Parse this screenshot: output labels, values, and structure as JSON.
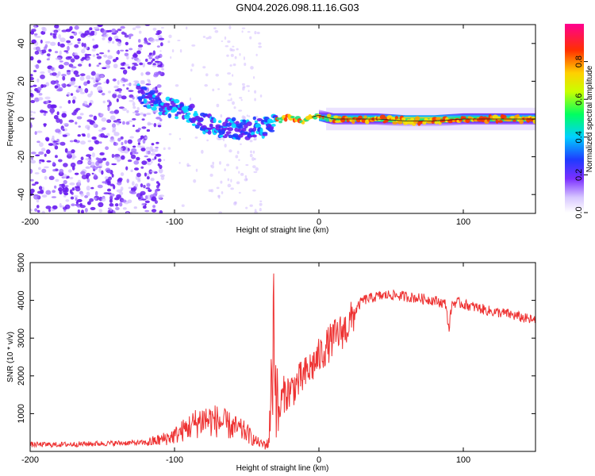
{
  "title": "GN04.2026.098.11.16.G03",
  "chart_data": [
    {
      "type": "heatmap",
      "xlabel": "Height of straight line (km)",
      "ylabel": "Frequency (Hz)",
      "xlim": [
        -200,
        150
      ],
      "ylim": [
        -50,
        50
      ],
      "xticks": [
        -200,
        -100,
        0,
        100
      ],
      "yticks": [
        -40,
        -20,
        0,
        20,
        40
      ],
      "colorbar": {
        "label": "Normalized spectral amplitude",
        "range": [
          0,
          1
        ],
        "ticks": [
          "0.0",
          "0.2",
          "0.4",
          "0.6",
          "0.8"
        ],
        "tick_values": [
          0,
          0.2,
          0.4,
          0.6,
          0.8
        ]
      },
      "ridge": {
        "x": [
          -125,
          -110,
          -100,
          -90,
          -80,
          -70,
          -60,
          -50,
          -45,
          -40,
          -35,
          -30,
          -25,
          -20,
          -15,
          -10,
          -5,
          0,
          5,
          10,
          20,
          40,
          60,
          80,
          100,
          120,
          150
        ],
        "freq": [
          13,
          8,
          5,
          3,
          -2,
          -4,
          -5,
          -6,
          -4,
          -5,
          -3,
          -1,
          0,
          1,
          0,
          -1,
          1,
          2,
          1,
          0,
          0,
          0,
          -1,
          -1,
          0,
          0,
          0
        ]
      }
    },
    {
      "type": "line",
      "xlabel": "Height of straight line (km)",
      "ylabel": "SNR (10 * v/v)",
      "xlim": [
        -200,
        150
      ],
      "ylim": [
        0,
        5000
      ],
      "xticks": [
        -200,
        -100,
        0,
        100
      ],
      "yticks": [
        1000,
        2000,
        3000,
        4000,
        5000
      ],
      "series": [
        {
          "name": "SNR",
          "color": "#ee3333",
          "x": [
            -200,
            -180,
            -160,
            -140,
            -120,
            -110,
            -100,
            -90,
            -80,
            -70,
            -60,
            -50,
            -45,
            -40,
            -35,
            -33,
            -31,
            -30,
            -28,
            -25,
            -20,
            -10,
            0,
            10,
            20,
            25,
            30,
            40,
            50,
            60,
            70,
            80,
            88,
            90,
            92,
            95,
            100,
            110,
            120,
            130,
            140,
            150
          ],
          "y": [
            180,
            180,
            200,
            220,
            230,
            300,
            420,
            650,
            850,
            800,
            650,
            500,
            300,
            200,
            180,
            1500,
            4000,
            1800,
            900,
            1500,
            1600,
            2000,
            2500,
            3000,
            3300,
            3700,
            4000,
            4100,
            4150,
            4100,
            4050,
            4000,
            3900,
            3200,
            3900,
            3950,
            3900,
            3800,
            3700,
            3650,
            3550,
            3450
          ]
        }
      ]
    }
  ]
}
